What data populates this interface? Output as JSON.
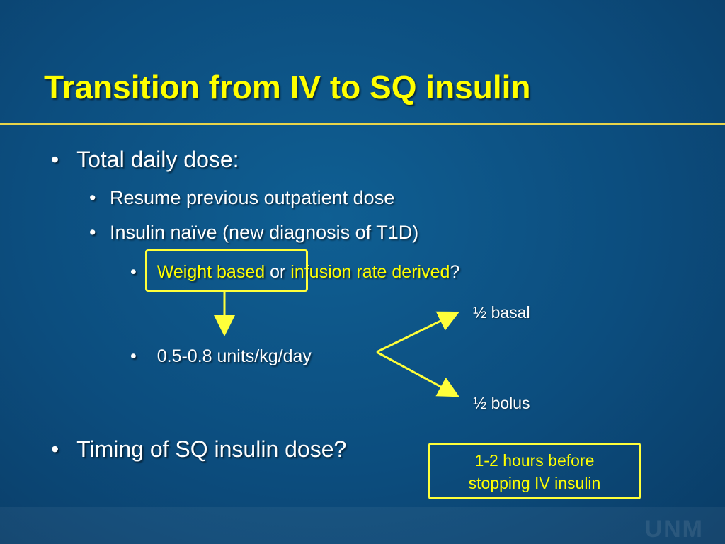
{
  "slide": {
    "title": "Transition from IV to SQ insulin",
    "bullets": {
      "total_daily_dose": "Total daily dose:",
      "resume_previous": "Resume previous outpatient dose",
      "insulin_naive": "Insulin naïve (new diagnosis of T1D)",
      "weight_based": "Weight based",
      "or": " or ",
      "infusion_rate": "infusion rate derived",
      "question_mark": "?",
      "dose_range": "0.5-0.8 units/kg/day",
      "timing": "Timing of SQ insulin dose?"
    },
    "split": {
      "basal": "½ basal",
      "bolus": "½ bolus"
    },
    "callout": {
      "line1": "1-2 hours before",
      "line2": "stopping IV insulin"
    },
    "bullet_glyph": "•",
    "footer_logo": "UNM"
  },
  "colors": {
    "background": "#0c4d7e",
    "title": "#ffff00",
    "highlight": "#ffff00",
    "text": "#ffffff"
  }
}
